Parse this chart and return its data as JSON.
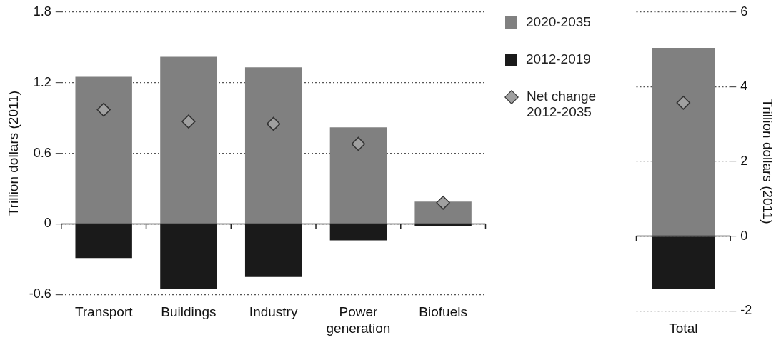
{
  "chart_data": [
    {
      "type": "bar",
      "stacked": true,
      "ylabel": "Trillion dollars (2011)",
      "categories": [
        "Transport",
        "Buildings",
        "Industry",
        "Power generation",
        "Biofuels"
      ],
      "ylim": [
        -0.6,
        1.8
      ],
      "yticks": [
        -0.6,
        0,
        0.6,
        1.2,
        1.8
      ],
      "grid": "y",
      "legend": "right",
      "marker": "diamond",
      "series": [
        {
          "name": "2020-2035",
          "color": "#808080",
          "values": [
            1.25,
            1.42,
            1.33,
            0.82,
            0.19
          ]
        },
        {
          "name": "2012-2019",
          "color": "#1a1a1a",
          "values": [
            -0.29,
            -0.55,
            -0.45,
            -0.14,
            -0.02
          ]
        },
        {
          "name": "Net change 2012-2035",
          "type": "scatter",
          "color": "#a0a0a0",
          "values": [
            0.97,
            0.87,
            0.85,
            0.68,
            0.18
          ]
        }
      ]
    },
    {
      "type": "bar",
      "stacked": true,
      "y2label": "Trillion dollars (2011)",
      "categories": [
        "Total"
      ],
      "y2lim": [
        -2,
        6
      ],
      "y2ticks": [
        -2,
        0,
        2,
        4,
        6
      ],
      "grid": "y",
      "legend": false,
      "marker": "diamond",
      "series": [
        {
          "color": "#808080",
          "axis": "y2",
          "values": [
            5.04
          ]
        },
        {
          "color": "#1a1a1a",
          "axis": "y2",
          "values": [
            -1.41
          ]
        },
        {
          "type": "scatter",
          "color": "#a0a0a0",
          "axis": "y2",
          "values": [
            3.57
          ]
        }
      ]
    }
  ]
}
